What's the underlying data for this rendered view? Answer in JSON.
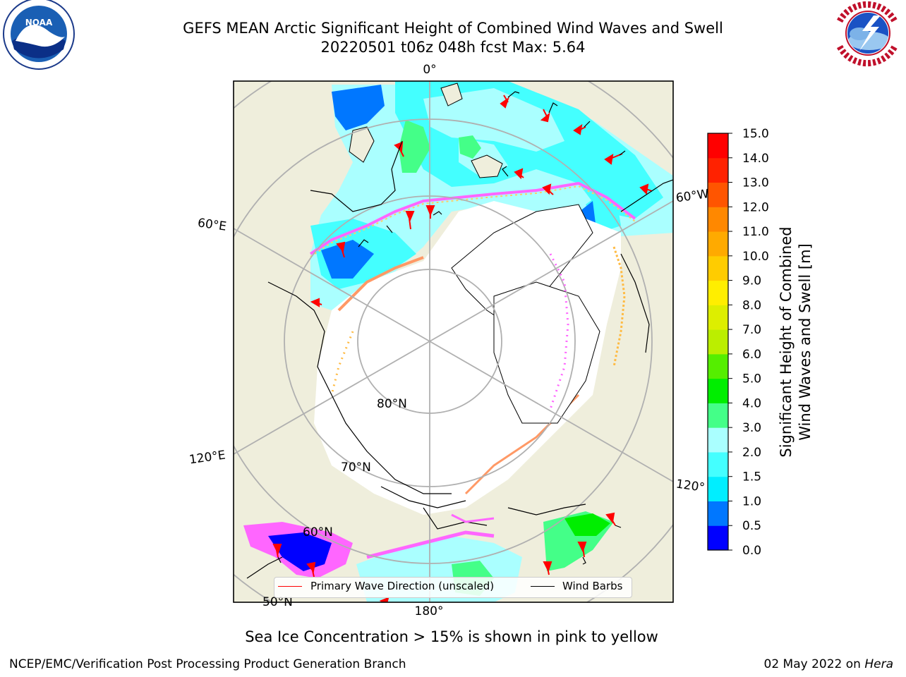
{
  "header": {
    "title_line1": "GEFS MEAN Arctic Significant Height of Combined Wind Waves and Swell",
    "title_line2": "20220501 t06z 048h fcst   Max: 5.64"
  },
  "logos": {
    "noaa_text": "NOAA",
    "noaa_ring_text": "NATIONAL OCEANIC AND ATMOSPHERIC ADMINISTRATION · U.S. DEPARTMENT OF COMMERCE",
    "nws_ring_text": "NATIONAL WEATHER SERVICE"
  },
  "map": {
    "longitude_labels": {
      "top": "0°",
      "bottom": "180°",
      "left_upper": "60°E",
      "left_lower": "120°E",
      "right_upper": "60°W",
      "right_lower": "120°"
    },
    "latitude_labels": {
      "lat80": "80°N",
      "lat70": "70°N",
      "lat60": "60°N",
      "lat50": "50°N"
    },
    "colors": {
      "land": "#efeedc",
      "ocean_frame_line": "#000000",
      "grid": "#b0b0b0",
      "ice_edge": "#ff66ff"
    }
  },
  "legend": {
    "wave_direction_label": "Primary Wave Direction (unscaled)",
    "wind_barbs_label": "Wind Barbs",
    "wave_direction_color": "#ff0000",
    "wind_barbs_color": "#000000"
  },
  "colorbar": {
    "label_line1": "Significant Height of Combined",
    "label_line2": "Wind Waves and Swell [m]",
    "ticks": [
      "0.0",
      "0.5",
      "1.0",
      "1.5",
      "2.0",
      "3.0",
      "4.0",
      "5.0",
      "6.0",
      "7.0",
      "8.0",
      "9.0",
      "10.0",
      "11.0",
      "12.0",
      "13.0",
      "14.0",
      "15.0"
    ],
    "colors": [
      "#0000ff",
      "#0077ff",
      "#00eeff",
      "#44ffff",
      "#aaffff",
      "#44ff88",
      "#00ee00",
      "#55ee00",
      "#bbee00",
      "#ddee00",
      "#ffee00",
      "#ffcc00",
      "#ffaa00",
      "#ff8800",
      "#ff5500",
      "#ff2200",
      "#ff0000"
    ]
  },
  "subtitle": "Sea Ice Concentration > 15% is shown in pink to yellow",
  "footer": {
    "left": "NCEP/EMC/Verification Post Processing Product Generation Branch",
    "right_date": "02 May 2022 on ",
    "right_machine": "Hera"
  }
}
